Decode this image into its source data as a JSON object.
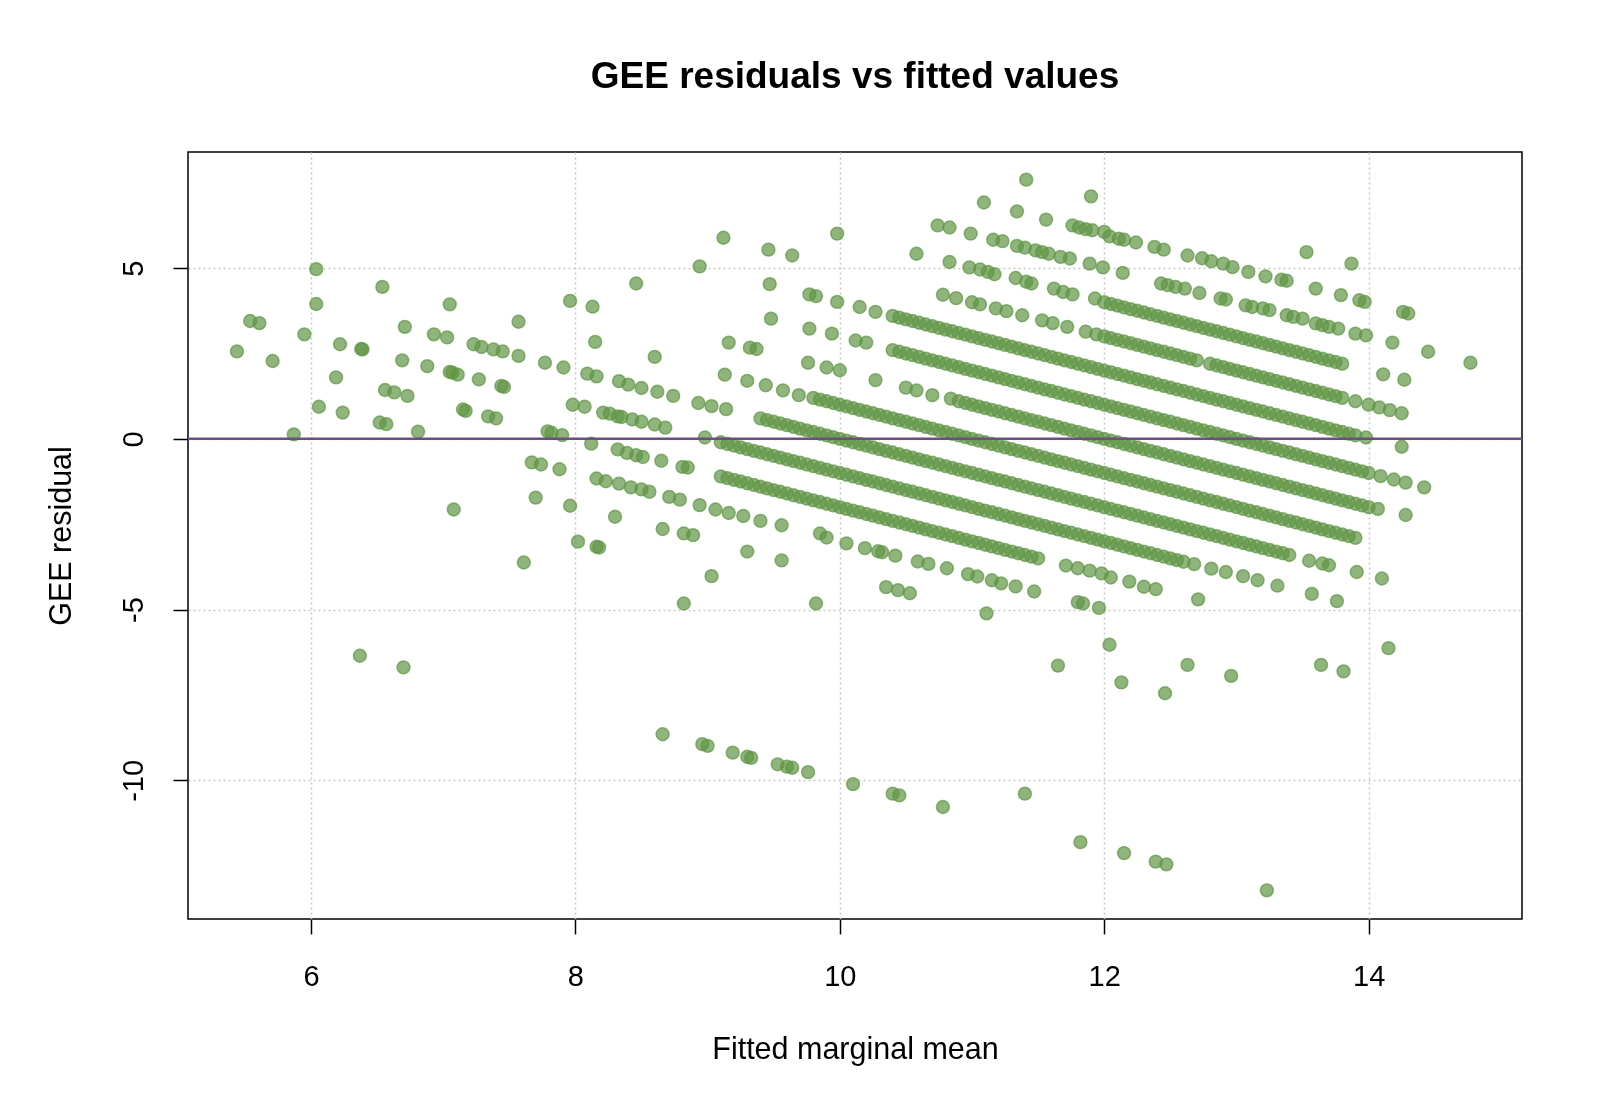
{
  "chart_data": {
    "type": "scatter",
    "title": "GEE residuals vs fitted values",
    "xlabel": "Fitted marginal mean",
    "ylabel": "GEE residual",
    "xlim": [
      5.07,
      15.16
    ],
    "ylim": [
      -14.06,
      8.4
    ],
    "xticks": [
      6,
      8,
      10,
      12,
      14
    ],
    "yticks": [
      -10,
      -5,
      0,
      5
    ],
    "grid": true,
    "marker": "circle",
    "ref_lines": [
      {
        "axis": "y",
        "value": 0,
        "color": "#6b4f80"
      }
    ],
    "series": [
      {
        "color": "#5f9644",
        "x": [
          5.44,
          5.54,
          5.61,
          5.71,
          5.87,
          5.95,
          6.04,
          6.04,
          6.06,
          6.19,
          6.22,
          6.24,
          6.38,
          6.39,
          6.37,
          6.54,
          6.52,
          6.57,
          6.56,
          6.63,
          6.73,
          6.69,
          6.71,
          6.7,
          6.81,
          6.88,
          6.93,
          7.03,
          7.05,
          7.05,
          7.07,
          7.11,
          7.08,
          7.15,
          7.17,
          7.27,
          7.23,
          7.29,
          7.34,
          7.4,
          7.38,
          7.45,
          7.44,
          7.46,
          7.57,
          7.57,
          7.61,
          7.77,
          7.91,
          7.79,
          7.82,
          7.9,
          7.67,
          7.74,
          7.88,
          7.7,
          7.96,
          8.02,
          8.16,
          8.18,
          7.96,
          8.13,
          8.15,
          8.46,
          7.98,
          8.07,
          8.09,
          8.16,
          8.12,
          8.21,
          8.26,
          8.32,
          8.35,
          8.43,
          8.5,
          8.33,
          8.4,
          8.5,
          8.32,
          8.39,
          8.46,
          8.51,
          8.16,
          8.23,
          8.33,
          8.42,
          8.5,
          8.3
        ],
        "values": [
          2.56,
          3.45,
          3.39,
          2.28,
          0.13,
          3.06,
          4.97,
          3.95,
          0.94,
          1.8,
          2.77,
          0.77,
          2.63,
          2.62,
          -6.35,
          4.45,
          0.48,
          0.43,
          1.43,
          1.36,
          1.26,
          2.3,
          3.28,
          -6.69,
          0.21,
          2.13,
          3.06,
          2.97,
          3.94,
          1.96,
          1.94,
          1.88,
          -2.07,
          0.86,
          0.82,
          1.74,
          2.77,
          2.69,
          0.66,
          0.6,
          2.62,
          2.56,
          1.55,
          1.52,
          3.43,
          2.43,
          -3.62,
          2.23,
          2.09,
          0.22,
          0.18,
          0.11,
          -0.69,
          -0.75,
          -0.89,
          -1.72,
          -1.96,
          -3.01,
          -3.16,
          -3.18,
          4.04,
          3.87,
          2.84,
          4.55,
          1.0,
          0.94,
          1.91,
          1.83,
          -0.14,
          0.77,
          0.74,
          0.66,
          0.64,
          0.57,
          0.5,
          1.69,
          1.59,
          1.49,
          -0.31,
          -0.41,
          -0.48,
          -0.53,
          -1.16,
          -1.24,
          -1.31,
          -1.42,
          -1.48,
          -2.28
        ]
      },
      {
        "color": "#5f9644",
        "x": [
          8.94,
          9.12,
          9.46,
          9.64,
          9.98,
          9.47,
          9.48,
          9.77,
          9.82,
          9.98,
          10.15,
          10.27,
          9.77,
          9.94,
          10.12,
          10.2,
          9.16,
          9.32,
          9.37,
          8.6,
          9.13,
          9.76,
          9.9,
          10.0,
          10.27,
          10.5,
          10.58,
          10.7,
          10.84,
          9.3,
          9.44,
          9.57,
          9.69,
          8.62,
          8.74,
          8.93,
          9.03,
          9.14,
          8.6,
          8.68,
          8.98,
          8.65,
          8.81,
          8.85,
          8.56,
          8.71,
          8.79,
          8.94,
          9.06,
          9.16,
          9.27,
          9.4,
          9.56,
          8.66,
          8.82,
          8.89,
          9.85,
          9.9
        ],
        "values": [
          5.05,
          5.89,
          5.54,
          5.37,
          6.01,
          4.53,
          3.52,
          4.23,
          4.18,
          4.01,
          3.86,
          3.72,
          3.23,
          3.08,
          2.88,
          2.82,
          2.82,
          2.67,
          2.63,
          2.4,
          1.88,
          2.23,
          2.09,
          2.01,
          1.72,
          1.5,
          1.42,
          1.28,
          1.18,
          1.7,
          1.57,
          1.42,
          1.28,
          1.38,
          1.26,
          1.05,
          0.96,
          0.87,
          0.42,
          0.33,
          0.04,
          -0.64,
          -0.82,
          -0.84,
          -1.55,
          -1.7,
          -1.78,
          -1.94,
          -2.07,
          -2.17,
          -2.26,
          -2.4,
          -2.53,
          -2.64,
          -2.77,
          -2.82,
          -2.77,
          -2.89
        ]
      },
      {
        "color": "#5f9644",
        "x": [
          8.66,
          8.96,
          9.0,
          9.19,
          9.3,
          9.33,
          9.53,
          9.6,
          9.64,
          9.76,
          10.1,
          10.4,
          10.45,
          10.78,
          11.4,
          11.82,
          12.15,
          12.39,
          12.47,
          13.23,
          11.65,
          12.04,
          12.13,
          12.46,
          12.63,
          12.96,
          13.64,
          13.81,
          14.15,
          8.82,
          9.82,
          11.11,
          11.8,
          11.84,
          11.96,
          12.71,
          13.57,
          13.76,
          9.03,
          9.3,
          9.56,
          10.35,
          10.44,
          10.53,
          11.47,
          11.22,
          11.33,
          10.97,
          11.04,
          11.15,
          10.81,
          10.59,
          10.67,
          10.42,
          10.19,
          10.29,
          10.32,
          10.05,
          11.71,
          11.8,
          11.89,
          12.05,
          12.19,
          12.3,
          12.39,
          12.68,
          12.81,
          12.92,
          13.05,
          13.16,
          13.31,
          13.91,
          14.1,
          13.55,
          13.65,
          13.7,
          11.98
        ],
        "values": [
          -8.65,
          -8.94,
          -8.99,
          -9.19,
          -9.31,
          -9.34,
          -9.53,
          -9.6,
          -9.63,
          -9.76,
          -10.11,
          -10.39,
          -10.44,
          -10.78,
          -10.39,
          -11.81,
          -12.13,
          -12.38,
          -12.46,
          -13.22,
          -6.64,
          -6.03,
          -7.13,
          -7.45,
          -6.62,
          -6.94,
          -6.62,
          -6.81,
          -6.13,
          -4.82,
          -4.82,
          -5.11,
          -4.78,
          -4.82,
          -4.95,
          -4.7,
          -4.54,
          -4.75,
          -4.02,
          -3.3,
          -3.56,
          -4.34,
          -4.43,
          -4.52,
          -4.47,
          -4.23,
          -4.32,
          -3.96,
          -4.03,
          -4.14,
          -3.79,
          -3.59,
          -3.66,
          -3.42,
          -3.2,
          -3.29,
          -3.32,
          -3.06,
          -3.71,
          -3.79,
          -3.86,
          -4.06,
          -4.18,
          -4.33,
          -4.4,
          -3.67,
          -3.8,
          -3.9,
          -4.02,
          -4.14,
          -4.3,
          -3.9,
          -4.09,
          -3.57,
          -3.65,
          -3.7,
          -3.94
        ]
      },
      {
        "color": "#5f9644",
        "x": [
          11.41,
          11.9,
          13.53,
          13.87,
          11.09,
          11.34,
          11.56,
          11.76,
          11.81,
          11.86,
          11.91,
          12.0,
          12.04,
          12.11,
          12.15,
          12.24,
          12.38,
          12.45,
          12.63,
          12.74,
          12.81,
          12.9,
          12.97,
          13.09,
          13.22,
          13.34,
          13.38,
          13.6,
          13.79,
          13.93,
          13.97,
          14.26,
          14.3,
          10.74,
          10.83,
          10.99,
          11.16,
          11.23,
          11.34,
          11.4,
          11.48,
          11.53,
          11.58,
          11.67,
          11.74,
          11.89,
          11.99,
          12.14,
          12.43,
          12.48,
          12.54,
          12.61,
          12.72,
          12.88,
          12.92,
          13.07,
          13.12,
          13.2,
          13.25,
          13.38,
          13.43,
          13.5,
          13.6,
          13.65,
          13.7,
          13.77,
          13.9,
          13.98,
          14.18,
          14.45,
          14.77,
          10.58,
          10.83,
          10.98,
          11.06,
          11.12,
          11.17,
          11.33,
          11.41,
          11.45,
          11.62,
          11.69,
          11.76,
          11.93,
          14.11,
          14.27,
          10.78,
          10.88,
          11.0,
          11.06,
          11.18,
          11.26,
          11.38,
          11.53,
          11.61,
          11.72,
          11.86,
          11.94,
          13.9,
          14.0,
          14.08,
          14.16,
          14.25,
          13.98,
          14.25,
          14.09,
          14.19,
          14.28,
          14.42,
          14.07,
          14.28
        ],
        "values": [
          7.59,
          7.1,
          5.47,
          5.13,
          6.92,
          6.66,
          6.42,
          6.25,
          6.19,
          6.14,
          6.11,
          6.06,
          5.93,
          5.86,
          5.83,
          5.75,
          5.62,
          5.54,
          5.37,
          5.29,
          5.2,
          5.13,
          5.03,
          4.89,
          4.76,
          4.66,
          4.63,
          4.4,
          4.21,
          4.06,
          4.01,
          3.72,
          3.67,
          6.25,
          6.19,
          6.01,
          5.83,
          5.79,
          5.65,
          5.6,
          5.52,
          5.47,
          5.42,
          5.33,
          5.28,
          5.13,
          5.02,
          4.86,
          4.55,
          4.5,
          4.45,
          4.4,
          4.27,
          4.11,
          4.08,
          3.91,
          3.86,
          3.82,
          3.77,
          3.62,
          3.57,
          3.52,
          3.38,
          3.33,
          3.28,
          3.23,
          3.08,
          3.03,
          2.82,
          2.55,
          2.23,
          5.42,
          5.18,
          5.02,
          4.96,
          4.89,
          4.82,
          4.71,
          4.6,
          4.55,
          4.4,
          4.3,
          4.23,
          4.11,
          1.89,
          1.73,
          4.22,
          4.12,
          4.0,
          3.94,
          3.82,
          3.74,
          3.62,
          3.47,
          3.39,
          3.28,
          3.14,
          3.06,
          1.1,
          1.0,
          0.92,
          0.84,
          0.75,
          0.04,
          -0.23,
          -1.09,
          -1.19,
          -1.28,
          -1.42,
          -2.05,
          -2.23
        ]
      },
      {
        "color": "#5f9644",
        "x": [
          12,
          12.05,
          12.1,
          12.15,
          12.2,
          12.25,
          12.3,
          12.35,
          12.4,
          12.45,
          12.5,
          12.55,
          12.6,
          12.65,
          12.7,
          12.75,
          12.8,
          12.85,
          12.9,
          12.95,
          13,
          13.05,
          13.1,
          13.15,
          13.2,
          13.25,
          13.3,
          13.35,
          13.4,
          13.45,
          13.5,
          13.55,
          13.6,
          13.65,
          13.7,
          13.75,
          13.8
        ],
        "values": [
          4,
          3.95,
          3.9,
          3.85,
          3.8,
          3.75,
          3.7,
          3.65,
          3.6,
          3.55,
          3.5,
          3.45,
          3.4,
          3.35,
          3.3,
          3.25,
          3.2,
          3.15,
          3.1,
          3.05,
          3,
          2.95,
          2.9,
          2.85,
          2.8,
          2.75,
          2.7,
          2.65,
          2.6,
          2.55,
          2.5,
          2.45,
          2.4,
          2.35,
          2.3,
          2.25,
          2.2
        ]
      },
      {
        "color": "#5f9644",
        "x": [
          12,
          12.05,
          12.1,
          12.15,
          12.2,
          12.25,
          12.3,
          12.35,
          12.4,
          12.45,
          12.5,
          12.55,
          12.6,
          12.65,
          12.7,
          12.8,
          12.85,
          12.9,
          12.95,
          13,
          13.05,
          13.1,
          13.15,
          13.2,
          13.25,
          13.3,
          13.35,
          13.4,
          13.45,
          13.5,
          13.55,
          13.6,
          13.65,
          13.7,
          13.75,
          13.8
        ],
        "values": [
          3,
          2.95,
          2.9,
          2.85,
          2.8,
          2.75,
          2.7,
          2.65,
          2.6,
          2.55,
          2.5,
          2.45,
          2.4,
          2.35,
          2.3,
          2.2,
          2.15,
          2.1,
          2.05,
          2,
          1.95,
          1.9,
          1.85,
          1.8,
          1.75,
          1.7,
          1.65,
          1.6,
          1.55,
          1.5,
          1.45,
          1.4,
          1.35,
          1.3,
          1.25,
          1.2
        ]
      },
      {
        "color": "#5f9644",
        "x": [
          10.4,
          10.45,
          10.5,
          10.55,
          10.6,
          10.65,
          10.7,
          10.75,
          10.8,
          10.85,
          10.9,
          10.95,
          11,
          11.05,
          11.1,
          11.15,
          11.2,
          11.25,
          11.3,
          11.35,
          11.4,
          11.45,
          11.5,
          11.55,
          11.6,
          11.65,
          11.7,
          11.75,
          11.8,
          11.85,
          11.9,
          11.95,
          12,
          12.05,
          12.1,
          12.15,
          12.2,
          12.25,
          12.3,
          12.35,
          12.4,
          12.45,
          12.5,
          12.55,
          12.6,
          12.65,
          12.7,
          12.75,
          12.8,
          12.85,
          12.9,
          12.95,
          13,
          13.05,
          13.1,
          13.15,
          13.2,
          13.25,
          13.3,
          13.35,
          13.4,
          13.45,
          13.5,
          13.55,
          13.6,
          13.65,
          13.7,
          13.75,
          13.8,
          13.85,
          13.9
        ],
        "values": [
          3.6,
          3.55,
          3.5,
          3.45,
          3.4,
          3.35,
          3.3,
          3.25,
          3.2,
          3.15,
          3.1,
          3.05,
          3,
          2.95,
          2.9,
          2.85,
          2.8,
          2.75,
          2.7,
          2.65,
          2.6,
          2.55,
          2.5,
          2.45,
          2.4,
          2.35,
          2.3,
          2.25,
          2.2,
          2.15,
          2.1,
          2.05,
          2,
          1.95,
          1.9,
          1.85,
          1.8,
          1.75,
          1.7,
          1.65,
          1.6,
          1.55,
          1.5,
          1.45,
          1.4,
          1.35,
          1.3,
          1.25,
          1.2,
          1.15,
          1.1,
          1.05,
          1,
          0.95,
          0.9,
          0.85,
          0.8,
          0.75,
          0.7,
          0.65,
          0.6,
          0.55,
          0.5,
          0.45,
          0.4,
          0.35,
          0.3,
          0.25,
          0.2,
          0.15,
          0.1
        ]
      },
      {
        "color": "#5f9644",
        "x": [
          10.4,
          10.45,
          10.5,
          10.55,
          10.6,
          10.65,
          10.7,
          10.75,
          10.8,
          10.85,
          10.9,
          10.95,
          11,
          11.05,
          11.1,
          11.15,
          11.2,
          11.25,
          11.3,
          11.35,
          11.4,
          11.45,
          11.5,
          11.55,
          11.6,
          11.65,
          11.7,
          11.75,
          11.8,
          11.85,
          11.9,
          11.95,
          12,
          12.05,
          12.1,
          12.15,
          12.2,
          12.25,
          12.3,
          12.35,
          12.4,
          12.45,
          12.5,
          12.55,
          12.6,
          12.65,
          12.7,
          12.75,
          12.8,
          12.85,
          12.9,
          12.95,
          13,
          13.05,
          13.1,
          13.15,
          13.2,
          13.25,
          13.3,
          13.35,
          13.4,
          13.45,
          13.5,
          13.55,
          13.6,
          13.65,
          13.7,
          13.75,
          13.8,
          13.85,
          13.9,
          13.95,
          14
        ],
        "values": [
          2.6,
          2.55,
          2.5,
          2.45,
          2.4,
          2.35,
          2.3,
          2.25,
          2.2,
          2.15,
          2.1,
          2.05,
          2,
          1.95,
          1.9,
          1.85,
          1.8,
          1.75,
          1.7,
          1.65,
          1.6,
          1.55,
          1.5,
          1.45,
          1.4,
          1.35,
          1.3,
          1.25,
          1.2,
          1.15,
          1.1,
          1.05,
          1,
          0.95,
          0.9,
          0.85,
          0.8,
          0.75,
          0.7,
          0.65,
          0.6,
          0.55,
          0.5,
          0.45,
          0.4,
          0.35,
          0.3,
          0.25,
          0.2,
          0.15,
          0.1,
          0.05,
          0,
          -0.05,
          -0.1,
          -0.15,
          -0.2,
          -0.25,
          -0.3,
          -0.35,
          -0.4,
          -0.45,
          -0.5,
          -0.55,
          -0.6,
          -0.65,
          -0.7,
          -0.75,
          -0.8,
          -0.85,
          -0.9,
          -0.95,
          -1
        ]
      },
      {
        "color": "#5f9644",
        "x": [
          10.9,
          10.95,
          11,
          11.05,
          11.1,
          11.15,
          11.2,
          11.25,
          11.3,
          11.35,
          11.4,
          11.45,
          11.5,
          11.55,
          11.6,
          11.65,
          11.7,
          11.75,
          11.8,
          11.85,
          11.9,
          11.95,
          12,
          12.05,
          12.1,
          12.15,
          12.2,
          12.25,
          12.3,
          12.35,
          12.4,
          12.45,
          12.5,
          12.55,
          12.6,
          12.65,
          12.7,
          12.75,
          12.8,
          12.85,
          12.9,
          12.95,
          13,
          13.05,
          13.1,
          13.15,
          13.2,
          13.25,
          13.3,
          13.35,
          13.4,
          13.45,
          13.5,
          13.55,
          13.6,
          13.65,
          13.7,
          13.75,
          13.8,
          13.85,
          13.9,
          13.95,
          14
        ],
        "values": [
          1.1,
          1.05,
          1,
          0.95,
          0.9,
          0.85,
          0.8,
          0.75,
          0.7,
          0.65,
          0.6,
          0.55,
          0.5,
          0.45,
          0.4,
          0.35,
          0.3,
          0.25,
          0.2,
          0.15,
          0.1,
          0.05,
          0,
          -0.05,
          -0.1,
          -0.15,
          -0.2,
          -0.25,
          -0.3,
          -0.35,
          -0.4,
          -0.45,
          -0.5,
          -0.55,
          -0.6,
          -0.65,
          -0.7,
          -0.75,
          -0.8,
          -0.85,
          -0.9,
          -0.95,
          -1,
          -1.05,
          -1.1,
          -1.15,
          -1.2,
          -1.25,
          -1.3,
          -1.35,
          -1.4,
          -1.45,
          -1.5,
          -1.55,
          -1.6,
          -1.65,
          -1.7,
          -1.75,
          -1.8,
          -1.85,
          -1.9,
          -1.95,
          -2
        ]
      },
      {
        "color": "#5f9644",
        "x": [
          9.8,
          9.85,
          9.9,
          9.95,
          10,
          10.05,
          10.1,
          10.15,
          10.2,
          10.25,
          10.3,
          10.35,
          10.4,
          10.45,
          10.5,
          10.55,
          10.6,
          10.65,
          10.7,
          10.75,
          10.8,
          10.85,
          10.9,
          10.95,
          11,
          11.05,
          11.1,
          11.15,
          11.2,
          11.25,
          11.3,
          11.35,
          11.4,
          11.45,
          11.5,
          11.55,
          11.6,
          11.65,
          11.7,
          11.75,
          11.8,
          11.85,
          11.9,
          11.95,
          12,
          12.05,
          12.1,
          12.15,
          12.2,
          12.25,
          12.3,
          12.35,
          12.4,
          12.45,
          12.5,
          12.55,
          12.6,
          12.65,
          12.7,
          12.75,
          12.8,
          12.85,
          12.9,
          12.95,
          13,
          13.05,
          13.1,
          13.15,
          13.2,
          13.25,
          13.3,
          13.35,
          13.4,
          13.45,
          13.5,
          13.55,
          13.6,
          13.65,
          13.7,
          13.75,
          13.8,
          13.85,
          13.9
        ],
        "values": [
          1.2,
          1.15,
          1.1,
          1.05,
          1,
          0.95,
          0.9,
          0.85,
          0.8,
          0.75,
          0.7,
          0.65,
          0.6,
          0.55,
          0.5,
          0.45,
          0.4,
          0.35,
          0.3,
          0.25,
          0.2,
          0.15,
          0.1,
          0.05,
          0,
          -0.05,
          -0.1,
          -0.15,
          -0.2,
          -0.25,
          -0.3,
          -0.35,
          -0.4,
          -0.45,
          -0.5,
          -0.55,
          -0.6,
          -0.65,
          -0.7,
          -0.75,
          -0.8,
          -0.85,
          -0.9,
          -0.95,
          -1,
          -1.05,
          -1.1,
          -1.15,
          -1.2,
          -1.25,
          -1.3,
          -1.35,
          -1.4,
          -1.45,
          -1.5,
          -1.55,
          -1.6,
          -1.65,
          -1.7,
          -1.75,
          -1.8,
          -1.85,
          -1.9,
          -1.95,
          -2,
          -2.05,
          -2.1,
          -2.15,
          -2.2,
          -2.25,
          -2.3,
          -2.35,
          -2.4,
          -2.45,
          -2.5,
          -2.55,
          -2.6,
          -2.65,
          -2.7,
          -2.75,
          -2.8,
          -2.85,
          -2.9
        ]
      },
      {
        "color": "#5f9644",
        "x": [
          9.4,
          9.45,
          9.5,
          9.55,
          9.6,
          9.65,
          9.7,
          9.75,
          9.8,
          9.85,
          9.9,
          9.95,
          10,
          10.05,
          10.1,
          10.15,
          10.2,
          10.25,
          10.3,
          10.35,
          10.4,
          10.45,
          10.5,
          10.55,
          10.6,
          10.65,
          10.7,
          10.75,
          10.8,
          10.85,
          10.9,
          10.95,
          11,
          11.05,
          11.1,
          11.15,
          11.2,
          11.25,
          11.3,
          11.35,
          11.4,
          11.45,
          11.5,
          11.55,
          11.6,
          11.65,
          11.7,
          11.75,
          11.8,
          11.85,
          11.9,
          11.95,
          12,
          12.05,
          12.1,
          12.15,
          12.2,
          12.25,
          12.3,
          12.35,
          12.4,
          12.45,
          12.5,
          12.55,
          12.6,
          12.65,
          12.7,
          12.75,
          12.8,
          12.85,
          12.9,
          12.95,
          13,
          13.05,
          13.1,
          13.15,
          13.2,
          13.25,
          13.3,
          13.35,
          13.4
        ],
        "values": [
          0.6,
          0.55,
          0.5,
          0.45,
          0.4,
          0.35,
          0.3,
          0.25,
          0.2,
          0.15,
          0.1,
          0.05,
          0,
          -0.05,
          -0.1,
          -0.15,
          -0.2,
          -0.25,
          -0.3,
          -0.35,
          -0.4,
          -0.45,
          -0.5,
          -0.55,
          -0.6,
          -0.65,
          -0.7,
          -0.75,
          -0.8,
          -0.85,
          -0.9,
          -0.95,
          -1,
          -1.05,
          -1.1,
          -1.15,
          -1.2,
          -1.25,
          -1.3,
          -1.35,
          -1.4,
          -1.45,
          -1.5,
          -1.55,
          -1.6,
          -1.65,
          -1.7,
          -1.75,
          -1.8,
          -1.85,
          -1.9,
          -1.95,
          -2,
          -2.05,
          -2.1,
          -2.15,
          -2.2,
          -2.25,
          -2.3,
          -2.35,
          -2.4,
          -2.45,
          -2.5,
          -2.55,
          -2.6,
          -2.65,
          -2.7,
          -2.75,
          -2.8,
          -2.85,
          -2.9,
          -2.95,
          -3,
          -3.05,
          -3.1,
          -3.15,
          -3.2,
          -3.25,
          -3.3,
          -3.35,
          -3.4
        ]
      },
      {
        "color": "#5f9644",
        "x": [
          9.1,
          9.15,
          9.2,
          9.25,
          9.3,
          9.35,
          9.4,
          9.45,
          9.5,
          9.55,
          9.6,
          9.65,
          9.7,
          9.75,
          9.8,
          9.85,
          9.9,
          9.95,
          10,
          10.05,
          10.1,
          10.15,
          10.2,
          10.25,
          10.3,
          10.35,
          10.4,
          10.45,
          10.5,
          10.55,
          10.6,
          10.65,
          10.7,
          10.75,
          10.8,
          10.85,
          10.9,
          10.95,
          11,
          11.05,
          11.1,
          11.15,
          11.2,
          11.25,
          11.3,
          11.35,
          11.4,
          11.45,
          11.5,
          11.55,
          11.6,
          11.65,
          11.7,
          11.75,
          11.8,
          11.85,
          11.9,
          11.95,
          12,
          12.05,
          12.1,
          12.15,
          12.2,
          12.25,
          12.3,
          12.35,
          12.4,
          12.45,
          12.5,
          12.55,
          12.6
        ],
        "values": [
          -0.1,
          -0.15,
          -0.2,
          -0.25,
          -0.3,
          -0.35,
          -0.4,
          -0.45,
          -0.5,
          -0.55,
          -0.6,
          -0.65,
          -0.7,
          -0.75,
          -0.8,
          -0.85,
          -0.9,
          -0.95,
          -1,
          -1.05,
          -1.1,
          -1.15,
          -1.2,
          -1.25,
          -1.3,
          -1.35,
          -1.4,
          -1.45,
          -1.5,
          -1.55,
          -1.6,
          -1.65,
          -1.7,
          -1.75,
          -1.8,
          -1.85,
          -1.9,
          -1.95,
          -2,
          -2.05,
          -2.1,
          -2.15,
          -2.2,
          -2.25,
          -2.3,
          -2.35,
          -2.4,
          -2.45,
          -2.5,
          -2.55,
          -2.6,
          -2.65,
          -2.7,
          -2.75,
          -2.8,
          -2.85,
          -2.9,
          -2.95,
          -3,
          -3.05,
          -3.1,
          -3.15,
          -3.2,
          -3.25,
          -3.3,
          -3.35,
          -3.4,
          -3.45,
          -3.5,
          -3.55,
          -3.6
        ]
      },
      {
        "color": "#5f9644",
        "x": [
          9.1,
          9.15,
          9.2,
          9.25,
          9.3,
          9.35,
          9.4,
          9.45,
          9.5,
          9.55,
          9.6,
          9.65,
          9.7,
          9.75,
          9.8,
          9.85,
          9.9,
          9.95,
          10,
          10.05,
          10.1,
          10.15,
          10.2,
          10.25,
          10.3,
          10.35,
          10.4,
          10.45,
          10.5,
          10.55,
          10.6,
          10.65,
          10.7,
          10.75,
          10.8,
          10.85,
          10.9,
          10.95,
          11,
          11.05,
          11.1,
          11.15,
          11.2,
          11.25,
          11.3,
          11.35,
          11.4,
          11.45,
          11.5
        ],
        "values": [
          -1.1,
          -1.15,
          -1.2,
          -1.25,
          -1.3,
          -1.35,
          -1.4,
          -1.45,
          -1.5,
          -1.55,
          -1.6,
          -1.65,
          -1.7,
          -1.75,
          -1.8,
          -1.85,
          -1.9,
          -1.95,
          -2,
          -2.05,
          -2.1,
          -2.15,
          -2.2,
          -2.25,
          -2.3,
          -2.35,
          -2.4,
          -2.45,
          -2.5,
          -2.55,
          -2.6,
          -2.65,
          -2.7,
          -2.75,
          -2.8,
          -2.85,
          -2.9,
          -2.95,
          -3,
          -3.05,
          -3.1,
          -3.15,
          -3.2,
          -3.25,
          -3.3,
          -3.35,
          -3.4,
          -3.45,
          -3.5
        ]
      }
    ]
  }
}
